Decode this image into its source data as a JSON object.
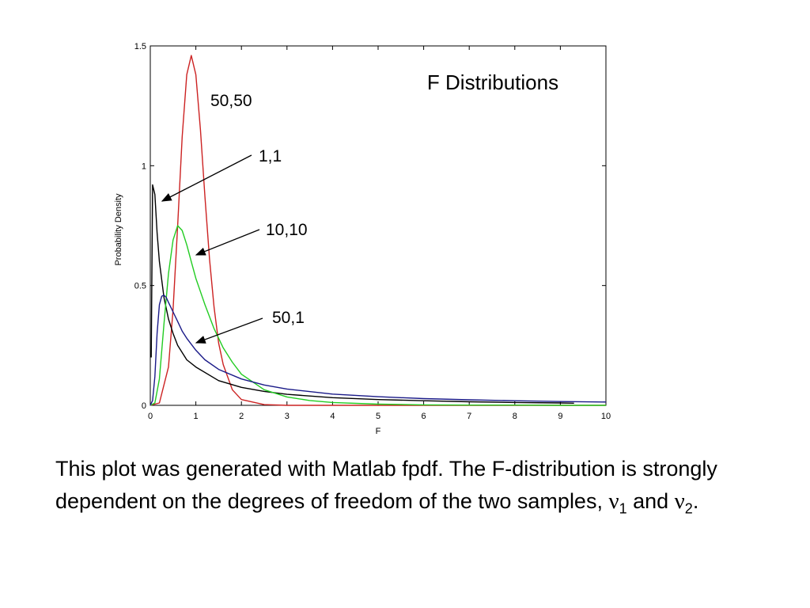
{
  "chart_data": {
    "type": "line",
    "title": "F Distributions",
    "xlabel": "F",
    "ylabel": "Probability Density",
    "xlim": [
      0,
      10
    ],
    "ylim": [
      0,
      1.5
    ],
    "xticks": [
      "0",
      "1",
      "2",
      "3",
      "4",
      "5",
      "6",
      "7",
      "8",
      "9",
      "10"
    ],
    "yticks": [
      "0",
      "0.5",
      "1",
      "1.5"
    ],
    "grid": false,
    "series": [
      {
        "name": "50,50",
        "color": "#cc2222",
        "x": [
          0,
          0.2,
          0.4,
          0.5,
          0.6,
          0.7,
          0.8,
          0.9,
          1.0,
          1.1,
          1.2,
          1.3,
          1.4,
          1.5,
          1.6,
          1.8,
          2.0,
          2.5,
          3.0,
          4.0,
          5.0,
          6.0,
          8.0,
          10.0
        ],
        "y": [
          0,
          0.01,
          0.16,
          0.4,
          0.75,
          1.12,
          1.38,
          1.46,
          1.38,
          1.15,
          0.87,
          0.61,
          0.41,
          0.26,
          0.17,
          0.065,
          0.024,
          0.003,
          0,
          0,
          0,
          0,
          0,
          0
        ]
      },
      {
        "name": "1,1",
        "color": "#000000",
        "x": [
          0.02,
          0.05,
          0.1,
          0.15,
          0.2,
          0.3,
          0.4,
          0.5,
          0.6,
          0.8,
          1.0,
          1.5,
          2.0,
          2.5,
          3.0,
          4.0,
          5.0,
          6.0,
          7.0,
          8.0,
          9.0,
          9.3
        ],
        "y": [
          0.2,
          0.92,
          0.88,
          0.72,
          0.6,
          0.45,
          0.36,
          0.3,
          0.25,
          0.19,
          0.16,
          0.103,
          0.075,
          0.058,
          0.046,
          0.032,
          0.024,
          0.019,
          0.015,
          0.012,
          0.01,
          0.009
        ]
      },
      {
        "name": "10,10",
        "color": "#22cc22",
        "x": [
          0,
          0.1,
          0.2,
          0.3,
          0.4,
          0.5,
          0.6,
          0.7,
          0.8,
          0.9,
          1.0,
          1.2,
          1.4,
          1.6,
          1.8,
          2.0,
          2.5,
          3.0,
          3.5,
          4.0,
          5.0,
          6.0,
          7.0,
          8.0,
          9.0,
          10.0
        ],
        "y": [
          0,
          0.01,
          0.11,
          0.34,
          0.55,
          0.69,
          0.75,
          0.73,
          0.67,
          0.6,
          0.53,
          0.42,
          0.32,
          0.24,
          0.18,
          0.13,
          0.065,
          0.035,
          0.02,
          0.012,
          0.005,
          0.002,
          0.001,
          0.001,
          0,
          0
        ]
      },
      {
        "name": "50,1",
        "color": "#1a1a88",
        "x": [
          0,
          0.05,
          0.1,
          0.15,
          0.2,
          0.25,
          0.3,
          0.35,
          0.4,
          0.5,
          0.6,
          0.7,
          0.8,
          1.0,
          1.2,
          1.5,
          2.0,
          2.5,
          3.0,
          4.0,
          5.0,
          6.0,
          7.0,
          8.0,
          9.0,
          10.0
        ],
        "y": [
          0,
          0.02,
          0.12,
          0.3,
          0.42,
          0.455,
          0.46,
          0.45,
          0.43,
          0.39,
          0.35,
          0.31,
          0.28,
          0.23,
          0.19,
          0.15,
          0.11,
          0.085,
          0.068,
          0.047,
          0.036,
          0.028,
          0.023,
          0.019,
          0.016,
          0.014
        ]
      }
    ],
    "annotations": [
      {
        "text": "50,50"
      },
      {
        "text": "1,1"
      },
      {
        "text": "10,10"
      },
      {
        "text": "50,1"
      }
    ]
  },
  "caption": {
    "text_before": "This plot was generated with Matlab fpdf. The F-distribution is strongly dependent on the degrees of freedom of the two samples, ",
    "nu_symbol": "ν",
    "sub1": "1",
    "and_text": " and ",
    "sub2": "2",
    "period": "."
  }
}
